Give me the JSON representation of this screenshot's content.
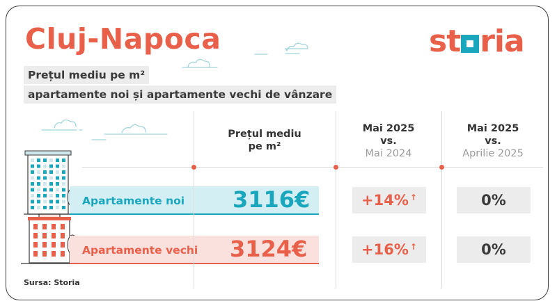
{
  "title": "Cluj-Napoca",
  "logo": {
    "part1": "st",
    "part2": "ria"
  },
  "subtitle_line1": "Prețul mediu pe m²",
  "subtitle_line2": "apartamente noi și apartamente vechi de vânzare",
  "headers": {
    "price": "Prețul mediu pe m²",
    "yoy_main": "Mai 2025",
    "yoy_vs": "vs.",
    "yoy_ref": "Mai 2024",
    "mom_main": "Mai 2025",
    "mom_vs": "vs.",
    "mom_ref": "Aprilie 2025"
  },
  "rows": [
    {
      "label": "Apartamente noi",
      "price": "3116€",
      "yoy": "+14%",
      "mom": "0%"
    },
    {
      "label": "Apartamente vechi",
      "price": "3124€",
      "yoy": "+16%",
      "mom": "0%"
    }
  ],
  "source": "Sursa: Storia",
  "colors": {
    "accent": "#e9604a",
    "teal": "#1aa7bd",
    "teal_light": "#d4eff3",
    "red_light": "#fbe1dd",
    "chip_bg": "#ececec"
  },
  "icons": {
    "up_arrow": "up-arrow-icon"
  }
}
